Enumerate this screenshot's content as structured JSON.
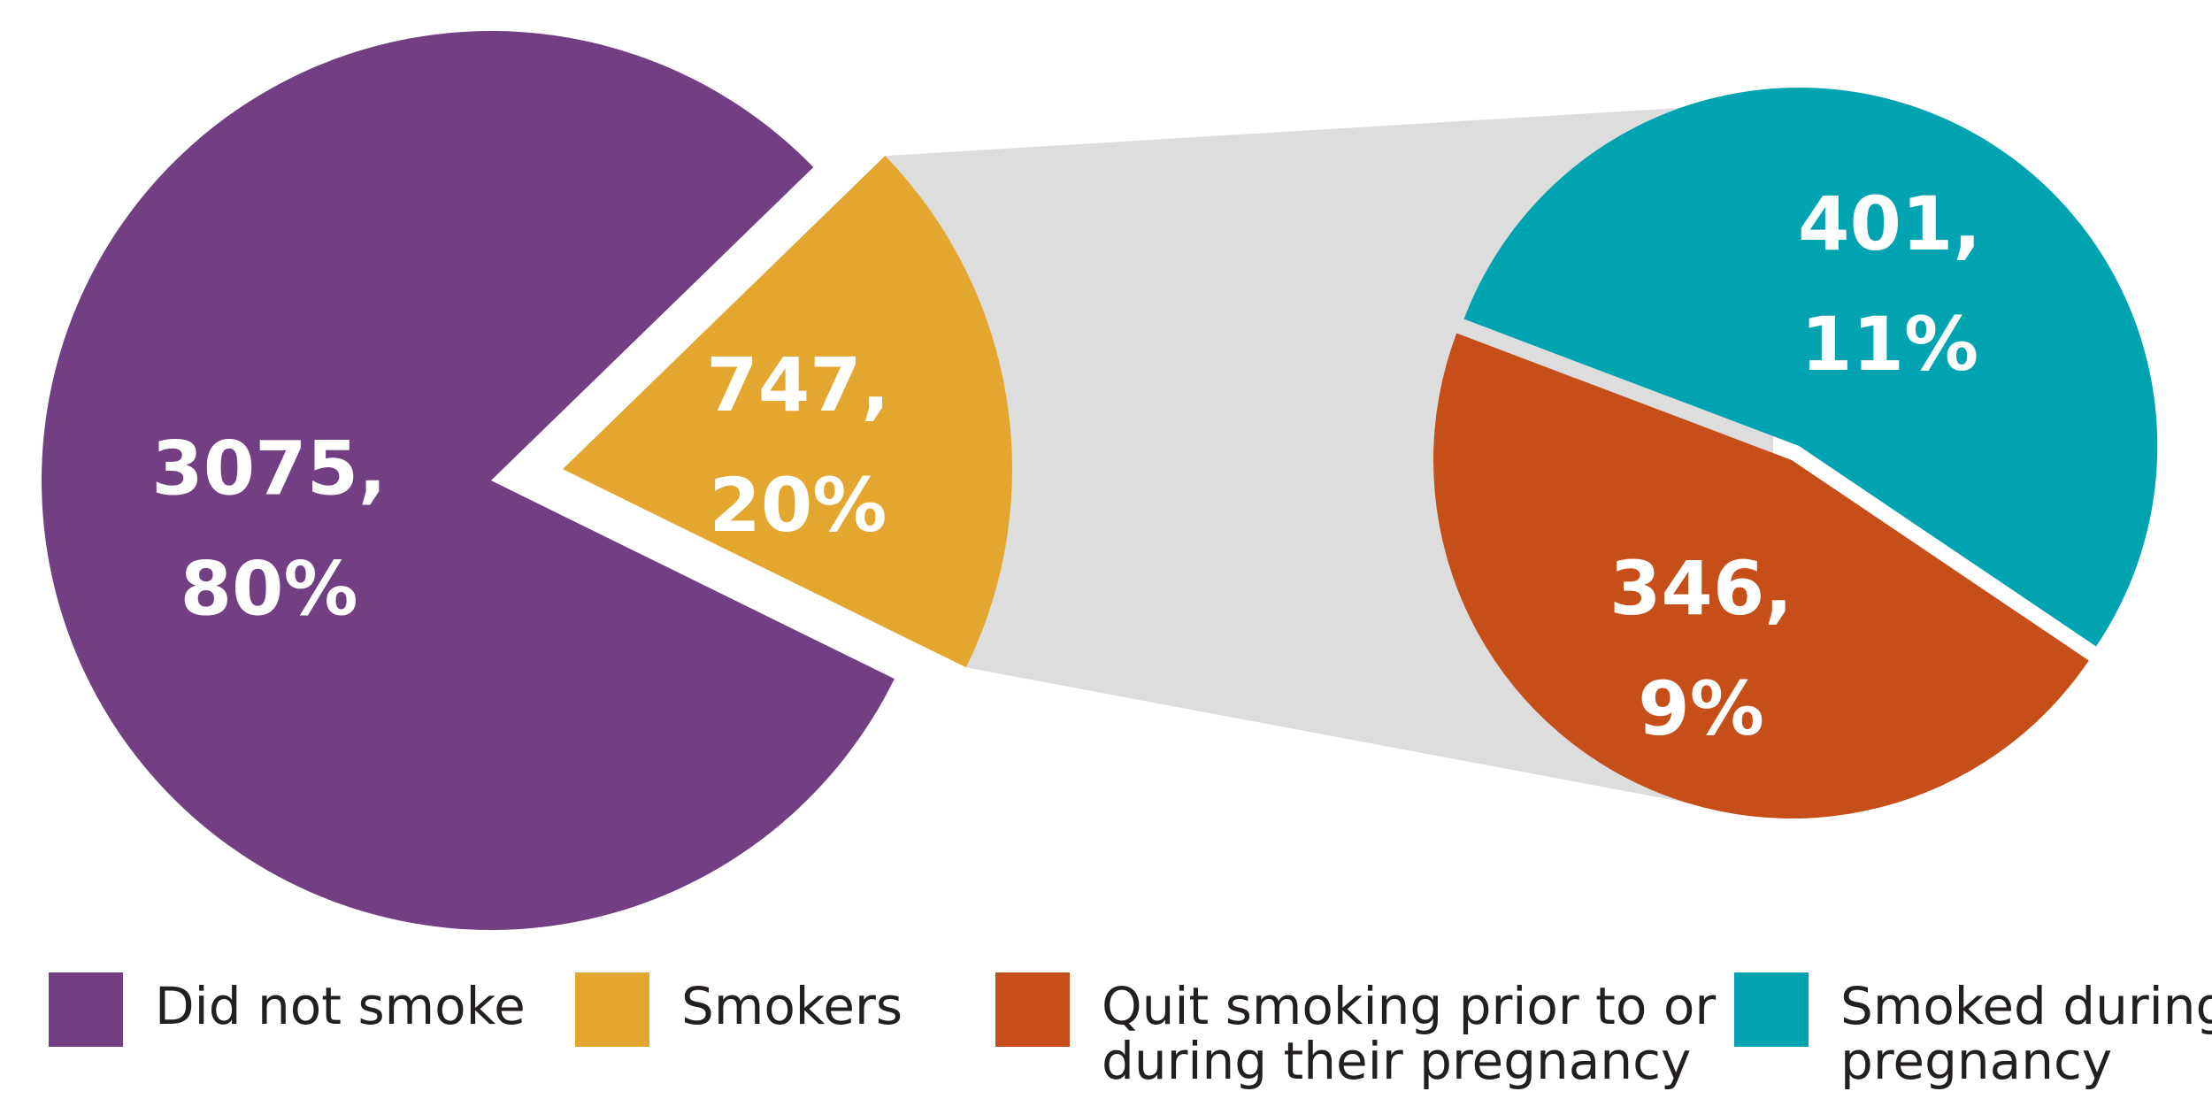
{
  "chart_data": {
    "type": "pie",
    "subtype": "pie-of-pie",
    "title": "",
    "main_pie": {
      "slices": [
        {
          "label": "Did not smoke",
          "value": 3075,
          "percent": "80%",
          "text_value": "3075,",
          "color": "#733f83"
        },
        {
          "label": "Smokers",
          "value": 747,
          "percent": "20%",
          "text_value": "747,",
          "color": "#e3a72f",
          "exploded": true
        }
      ]
    },
    "secondary_pie": {
      "breakdown_of": "Smokers",
      "slices": [
        {
          "label": "Smoked during pregnancy",
          "value": 401,
          "percent": "11%",
          "text_value": "401,",
          "color": "#00a4b1"
        },
        {
          "label": "Quit smoking prior to or during their pregnancy",
          "value": 346,
          "percent": "9%",
          "text_value": "346,",
          "color": "#c64e19"
        }
      ]
    },
    "connector_color": "#dddddd",
    "legend": {
      "position": "bottom",
      "items": [
        {
          "label_lines": [
            "Did not smoke"
          ],
          "color": "#733f83"
        },
        {
          "label_lines": [
            "Smokers"
          ],
          "color": "#e3a72f"
        },
        {
          "label_lines": [
            "Quit smoking prior to or",
            "during their pregnancy"
          ],
          "color": "#c64e19"
        },
        {
          "label_lines": [
            "Smoked during",
            "pregnancy"
          ],
          "color": "#00a4b1"
        }
      ]
    }
  }
}
